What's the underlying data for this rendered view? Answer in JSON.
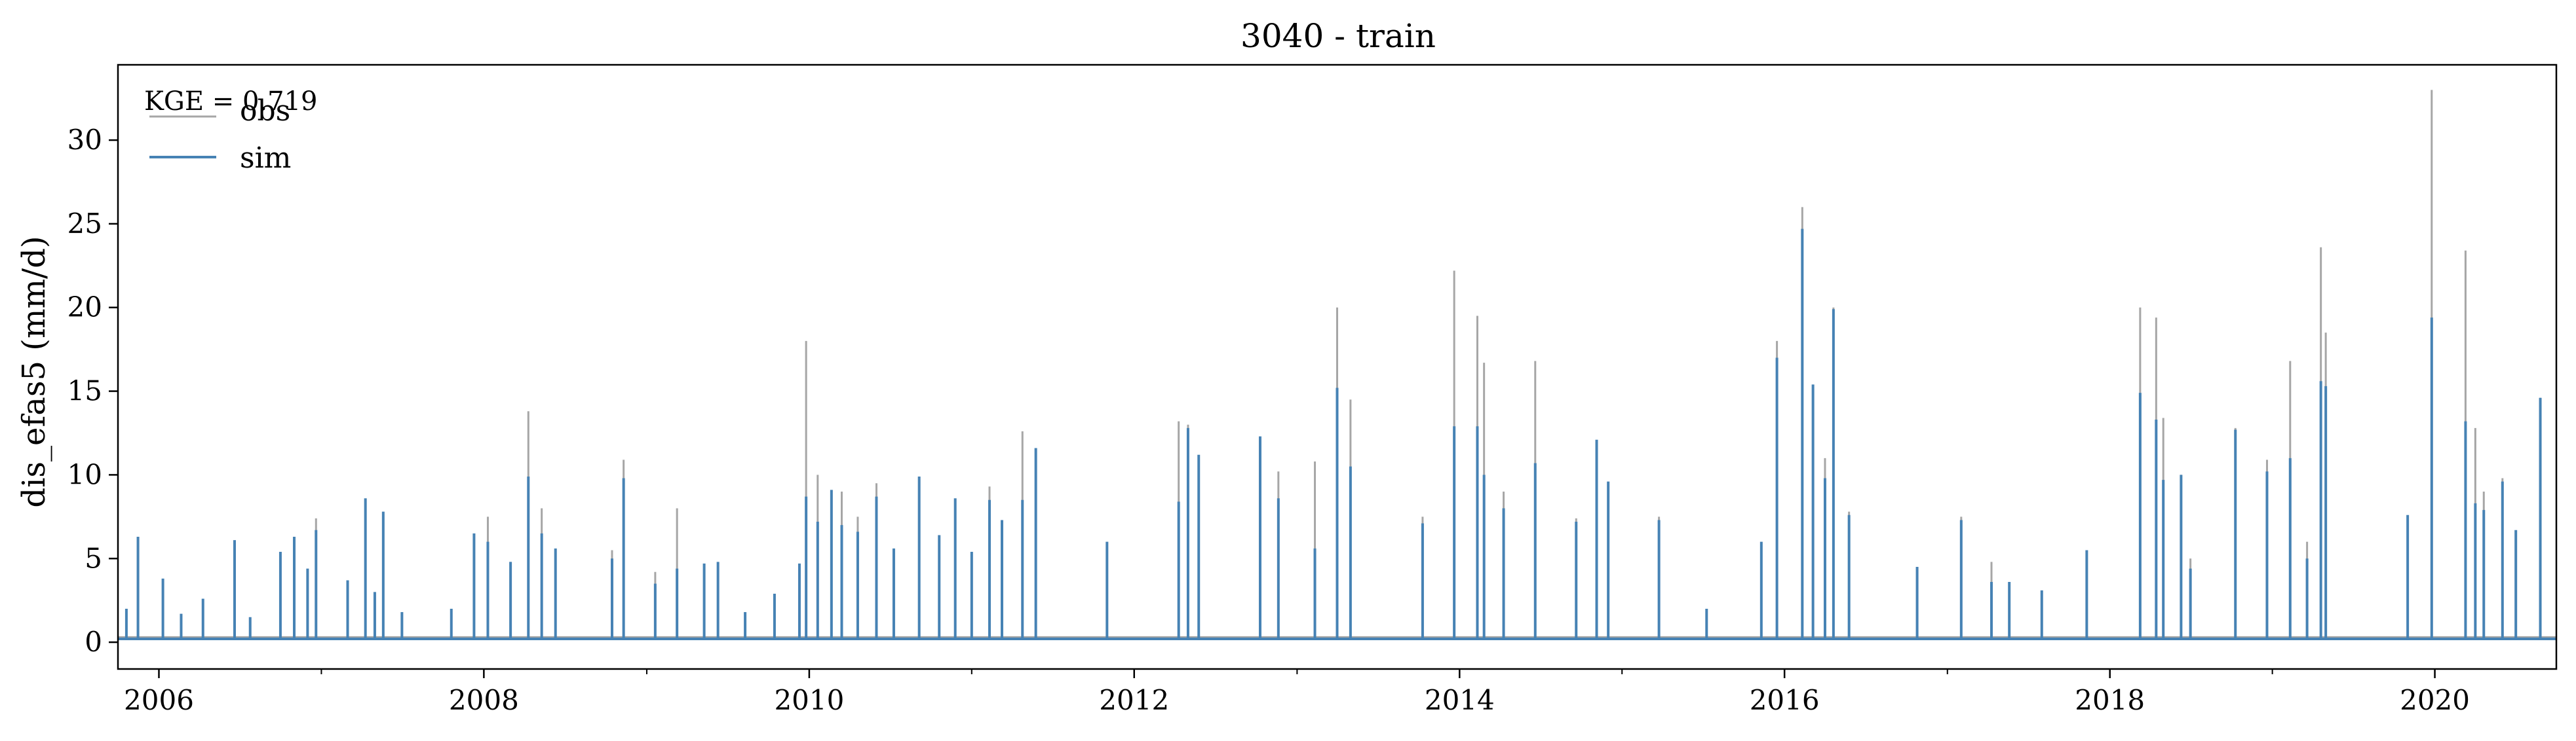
{
  "chart_data": {
    "type": "line",
    "title": "3040 - train",
    "xlabel": "",
    "ylabel": "dis_efas5 (mm/d)",
    "xlim": [
      "2005-10-01",
      "2020-09-30"
    ],
    "ylim": [
      -1.6,
      34.5
    ],
    "x_ticks": [
      "2006",
      "2008",
      "2010",
      "2012",
      "2014",
      "2016",
      "2018",
      "2020"
    ],
    "y_ticks": [
      0,
      5,
      10,
      15,
      20,
      25,
      30
    ],
    "grid": false,
    "legend": {
      "position": "upper-left",
      "entries": [
        "obs",
        "sim"
      ]
    },
    "annotation": "KGE = 0.719",
    "colors": {
      "obs": "#a6a6a6",
      "sim": "#4682b4"
    },
    "series": [
      {
        "name": "obs",
        "baseline": 0.3,
        "peaks": [
          [
            "2005-10-20",
            2.0
          ],
          [
            "2005-11-15",
            6.0
          ],
          [
            "2006-01-10",
            3.4
          ],
          [
            "2006-02-20",
            1.5
          ],
          [
            "2006-04-10",
            2.4
          ],
          [
            "2006-06-20",
            6.0
          ],
          [
            "2006-07-25",
            1.4
          ],
          [
            "2006-10-01",
            5.0
          ],
          [
            "2006-11-01",
            6.2
          ],
          [
            "2006-12-01",
            4.1
          ],
          [
            "2006-12-20",
            7.4
          ],
          [
            "2007-03-01",
            3.3
          ],
          [
            "2007-04-10",
            8.5
          ],
          [
            "2007-05-01",
            2.6
          ],
          [
            "2007-05-20",
            7.4
          ],
          [
            "2007-07-01",
            1.6
          ],
          [
            "2007-10-20",
            2.0
          ],
          [
            "2007-12-10",
            6.2
          ],
          [
            "2008-01-10",
            7.5
          ],
          [
            "2008-03-01",
            4.8
          ],
          [
            "2008-04-10",
            13.8
          ],
          [
            "2008-05-10",
            8.0
          ],
          [
            "2008-06-10",
            5.5
          ],
          [
            "2008-10-15",
            5.5
          ],
          [
            "2008-11-10",
            10.9
          ],
          [
            "2009-01-20",
            4.2
          ],
          [
            "2009-03-10",
            8.0
          ],
          [
            "2009-05-10",
            3.6
          ],
          [
            "2009-06-10",
            4.5
          ],
          [
            "2009-08-10",
            1.5
          ],
          [
            "2009-10-15",
            2.8
          ],
          [
            "2009-12-10",
            4.5
          ],
          [
            "2009-12-25",
            18.0
          ],
          [
            "2010-01-20",
            10.0
          ],
          [
            "2010-02-20",
            6.5
          ],
          [
            "2010-03-15",
            9.0
          ],
          [
            "2010-04-20",
            7.5
          ],
          [
            "2010-06-01",
            9.5
          ],
          [
            "2010-07-10",
            5.0
          ],
          [
            "2010-09-05",
            6.3
          ],
          [
            "2010-10-20",
            6.3
          ],
          [
            "2010-11-25",
            8.5
          ],
          [
            "2011-01-01",
            5.0
          ],
          [
            "2011-02-10",
            9.3
          ],
          [
            "2011-03-10",
            6.8
          ],
          [
            "2011-04-25",
            12.6
          ],
          [
            "2011-05-25",
            11.5
          ],
          [
            "2011-11-01",
            5.7
          ],
          [
            "2012-04-10",
            13.2
          ],
          [
            "2012-05-01",
            13.0
          ],
          [
            "2012-05-25",
            10.5
          ],
          [
            "2012-10-10",
            12.0
          ],
          [
            "2012-11-20",
            10.2
          ],
          [
            "2013-02-10",
            10.8
          ],
          [
            "2013-04-01",
            20.0
          ],
          [
            "2013-05-01",
            14.5
          ],
          [
            "2013-10-10",
            7.5
          ],
          [
            "2013-12-20",
            22.2
          ],
          [
            "2014-02-10",
            19.5
          ],
          [
            "2014-02-25",
            16.7
          ],
          [
            "2014-04-10",
            9.0
          ],
          [
            "2014-06-20",
            16.8
          ],
          [
            "2014-09-20",
            7.4
          ],
          [
            "2014-11-05",
            10.0
          ],
          [
            "2014-12-01",
            7.5
          ],
          [
            "2015-03-25",
            7.5
          ],
          [
            "2015-07-10",
            1.7
          ],
          [
            "2015-11-10",
            5.7
          ],
          [
            "2015-12-15",
            18.0
          ],
          [
            "2016-02-10",
            26.0
          ],
          [
            "2016-03-05",
            14.0
          ],
          [
            "2016-04-01",
            11.0
          ],
          [
            "2016-04-20",
            20.0
          ],
          [
            "2016-05-25",
            7.8
          ],
          [
            "2016-10-25",
            4.4
          ],
          [
            "2017-02-01",
            7.5
          ],
          [
            "2017-04-10",
            4.8
          ],
          [
            "2017-05-20",
            3.1
          ],
          [
            "2017-08-01",
            3.0
          ],
          [
            "2017-11-10",
            5.4
          ],
          [
            "2018-03-10",
            20.0
          ],
          [
            "2018-04-15",
            19.4
          ],
          [
            "2018-05-01",
            13.4
          ],
          [
            "2018-06-10",
            10.0
          ],
          [
            "2018-07-01",
            5.0
          ],
          [
            "2018-10-10",
            12.8
          ],
          [
            "2018-12-20",
            10.9
          ],
          [
            "2019-02-10",
            16.8
          ],
          [
            "2019-03-20",
            6.0
          ],
          [
            "2019-04-20",
            23.6
          ],
          [
            "2019-05-01",
            18.5
          ],
          [
            "2019-11-01",
            7.5
          ],
          [
            "2019-12-25",
            33.0
          ],
          [
            "2020-03-10",
            23.4
          ],
          [
            "2020-04-01",
            12.8
          ],
          [
            "2020-04-20",
            9.0
          ],
          [
            "2020-06-01",
            9.8
          ],
          [
            "2020-07-01",
            6.5
          ],
          [
            "2020-08-25",
            14.6
          ]
        ]
      },
      {
        "name": "sim",
        "baseline": 0.2,
        "peaks": [
          [
            "2005-10-20",
            2.0
          ],
          [
            "2005-11-15",
            6.3
          ],
          [
            "2006-01-10",
            3.8
          ],
          [
            "2006-02-20",
            1.7
          ],
          [
            "2006-04-10",
            2.6
          ],
          [
            "2006-06-20",
            6.1
          ],
          [
            "2006-07-25",
            1.5
          ],
          [
            "2006-10-01",
            5.4
          ],
          [
            "2006-11-01",
            6.3
          ],
          [
            "2006-12-01",
            4.4
          ],
          [
            "2006-12-20",
            6.7
          ],
          [
            "2007-03-01",
            3.7
          ],
          [
            "2007-04-10",
            8.6
          ],
          [
            "2007-05-01",
            3.0
          ],
          [
            "2007-05-20",
            7.8
          ],
          [
            "2007-07-01",
            1.8
          ],
          [
            "2007-10-20",
            2.0
          ],
          [
            "2007-12-10",
            6.5
          ],
          [
            "2008-01-10",
            6.0
          ],
          [
            "2008-03-01",
            4.8
          ],
          [
            "2008-04-10",
            9.9
          ],
          [
            "2008-05-10",
            6.5
          ],
          [
            "2008-06-10",
            5.6
          ],
          [
            "2008-10-15",
            5.0
          ],
          [
            "2008-11-10",
            9.8
          ],
          [
            "2009-01-20",
            3.5
          ],
          [
            "2009-03-10",
            4.4
          ],
          [
            "2009-05-10",
            4.7
          ],
          [
            "2009-06-10",
            4.8
          ],
          [
            "2009-08-10",
            1.8
          ],
          [
            "2009-10-15",
            2.9
          ],
          [
            "2009-12-10",
            4.7
          ],
          [
            "2009-12-25",
            8.7
          ],
          [
            "2010-01-20",
            7.2
          ],
          [
            "2010-02-20",
            9.1
          ],
          [
            "2010-03-15",
            7.0
          ],
          [
            "2010-04-20",
            6.6
          ],
          [
            "2010-06-01",
            8.7
          ],
          [
            "2010-07-10",
            5.6
          ],
          [
            "2010-09-05",
            9.9
          ],
          [
            "2010-10-20",
            6.4
          ],
          [
            "2010-11-25",
            8.6
          ],
          [
            "2011-01-01",
            5.4
          ],
          [
            "2011-02-10",
            8.5
          ],
          [
            "2011-03-10",
            7.3
          ],
          [
            "2011-04-25",
            8.5
          ],
          [
            "2011-05-25",
            11.6
          ],
          [
            "2011-11-01",
            6.0
          ],
          [
            "2012-04-10",
            8.4
          ],
          [
            "2012-05-01",
            12.8
          ],
          [
            "2012-05-25",
            11.2
          ],
          [
            "2012-10-10",
            12.3
          ],
          [
            "2012-11-20",
            8.6
          ],
          [
            "2013-02-10",
            5.6
          ],
          [
            "2013-04-01",
            15.2
          ],
          [
            "2013-05-01",
            10.5
          ],
          [
            "2013-10-10",
            7.1
          ],
          [
            "2013-12-20",
            12.9
          ],
          [
            "2014-02-10",
            12.9
          ],
          [
            "2014-02-25",
            10.0
          ],
          [
            "2014-04-10",
            8.0
          ],
          [
            "2014-06-20",
            10.7
          ],
          [
            "2014-09-20",
            7.2
          ],
          [
            "2014-11-05",
            12.1
          ],
          [
            "2014-12-01",
            9.6
          ],
          [
            "2015-03-25",
            7.3
          ],
          [
            "2015-07-10",
            2.0
          ],
          [
            "2015-11-10",
            6.0
          ],
          [
            "2015-12-15",
            17.0
          ],
          [
            "2016-02-10",
            24.7
          ],
          [
            "2016-03-05",
            15.4
          ],
          [
            "2016-04-01",
            9.8
          ],
          [
            "2016-04-20",
            19.9
          ],
          [
            "2016-05-25",
            7.6
          ],
          [
            "2016-10-25",
            4.5
          ],
          [
            "2017-02-01",
            7.3
          ],
          [
            "2017-04-10",
            3.6
          ],
          [
            "2017-05-20",
            3.6
          ],
          [
            "2017-08-01",
            3.1
          ],
          [
            "2017-11-10",
            5.5
          ],
          [
            "2018-03-10",
            14.9
          ],
          [
            "2018-04-15",
            13.3
          ],
          [
            "2018-05-01",
            9.7
          ],
          [
            "2018-06-10",
            10.0
          ],
          [
            "2018-07-01",
            4.4
          ],
          [
            "2018-10-10",
            12.7
          ],
          [
            "2018-12-20",
            10.2
          ],
          [
            "2019-02-10",
            11.0
          ],
          [
            "2019-03-20",
            5.0
          ],
          [
            "2019-04-20",
            15.6
          ],
          [
            "2019-05-01",
            15.3
          ],
          [
            "2019-11-01",
            7.6
          ],
          [
            "2019-12-25",
            19.4
          ],
          [
            "2020-03-10",
            13.2
          ],
          [
            "2020-04-01",
            8.3
          ],
          [
            "2020-04-20",
            7.9
          ],
          [
            "2020-06-01",
            9.6
          ],
          [
            "2020-07-01",
            6.7
          ],
          [
            "2020-08-25",
            14.6
          ]
        ]
      }
    ]
  }
}
